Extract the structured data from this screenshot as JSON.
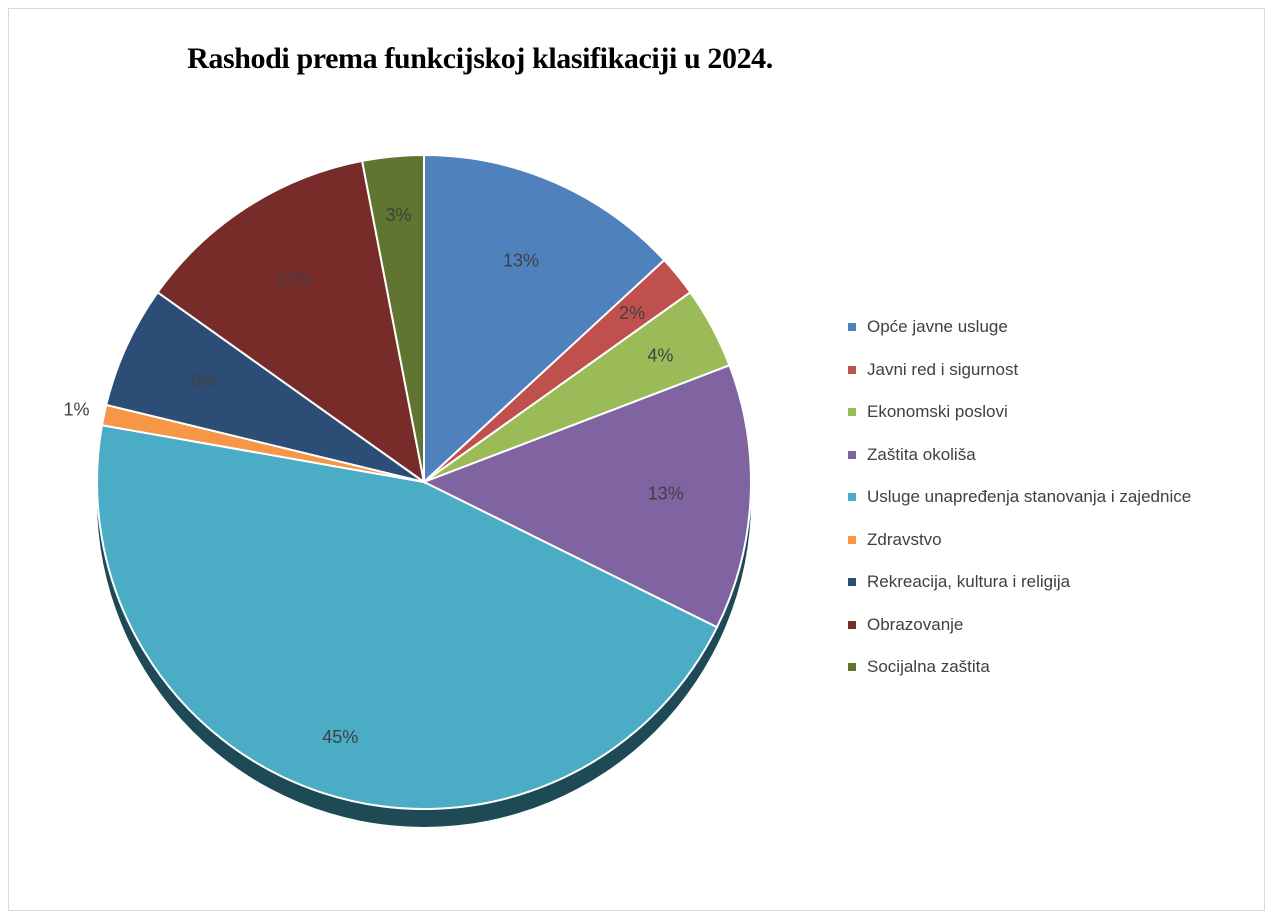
{
  "chart_data": {
    "type": "pie",
    "title": "Rashodi prema funkcijskoj klasifikaciji u 2024.",
    "legend_position": "right",
    "slices": [
      {
        "label": "Opće javne usluge",
        "value": 13,
        "display": "13%",
        "color": "#4f81bd"
      },
      {
        "label": "Javni red i sigurnost",
        "value": 2,
        "display": "2%",
        "color": "#c0504d"
      },
      {
        "label": "Ekonomski poslovi",
        "value": 4,
        "display": "4%",
        "color": "#9bbb59"
      },
      {
        "label": "Zaštita okoliša",
        "value": 13,
        "display": "13%",
        "color": "#8064a2"
      },
      {
        "label": "Usluge unapređenja stanovanja i zajednice",
        "value": 45,
        "display": "45%",
        "color": "#4bacc6"
      },
      {
        "label": "Zdravstvo",
        "value": 1,
        "display": "1%",
        "color": "#f79646"
      },
      {
        "label": "Rekreacija, kultura i religija",
        "value": 6,
        "display": "6%",
        "color": "#2c4d75"
      },
      {
        "label": "Obrazovanje",
        "value": 12,
        "display": "12%",
        "color": "#772c2a"
      },
      {
        "label": "Socijalna zaštita",
        "value": 3,
        "display": "3%",
        "color": "#5f7530"
      }
    ]
  }
}
